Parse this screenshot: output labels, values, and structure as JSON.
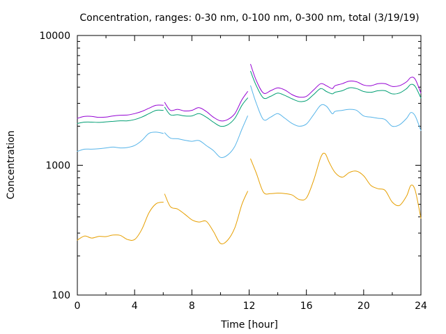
{
  "chart_data": {
    "type": "line",
    "title": "Concentration, ranges: 0-30 nm, 0-100 nm, 0-300 nm, total (3/19/19)",
    "xlabel": "Time [hour]",
    "ylabel": "Concentration",
    "xlim": [
      0,
      24
    ],
    "ylim": [
      100,
      10000
    ],
    "yscale": "log",
    "xticks": [
      "0",
      "4",
      "8",
      "12",
      "16",
      "20",
      "24"
    ],
    "yticks": [
      "100",
      "1000",
      "10000"
    ],
    "grid": false,
    "legend": "none",
    "series": [
      {
        "color": "#e69f00",
        "segments": [
          [
            [
              0,
              265
            ],
            [
              0.5,
              285
            ],
            [
              1,
              275
            ],
            [
              1.5,
              283
            ],
            [
              2,
              282
            ],
            [
              2.5,
              290
            ],
            [
              3,
              288
            ],
            [
              3.5,
              268
            ],
            [
              4,
              268
            ],
            [
              4.5,
              320
            ],
            [
              5,
              430
            ],
            [
              5.5,
              505
            ],
            [
              6,
              520
            ]
          ],
          [
            [
              6.1,
              600
            ],
            [
              6.5,
              480
            ],
            [
              7,
              460
            ],
            [
              7.5,
              420
            ],
            [
              8,
              380
            ],
            [
              8.5,
              365
            ],
            [
              9,
              370
            ],
            [
              9.5,
              310
            ],
            [
              10,
              250
            ],
            [
              10.5,
              265
            ],
            [
              11,
              330
            ],
            [
              11.5,
              500
            ],
            [
              11.9,
              630
            ]
          ],
          [
            [
              12.1,
              1120
            ],
            [
              12.5,
              870
            ],
            [
              13,
              620
            ],
            [
              13.5,
              605
            ],
            [
              14,
              610
            ],
            [
              14.5,
              605
            ],
            [
              15,
              590
            ],
            [
              15.5,
              545
            ],
            [
              16,
              560
            ],
            [
              16.5,
              760
            ],
            [
              17,
              1150
            ],
            [
              17.3,
              1230
            ],
            [
              17.6,
              1050
            ],
            [
              18,
              880
            ],
            [
              18.5,
              810
            ],
            [
              19,
              880
            ],
            [
              19.5,
              900
            ],
            [
              20,
              830
            ],
            [
              20.5,
              700
            ],
            [
              21,
              660
            ],
            [
              21.5,
              640
            ],
            [
              22,
              520
            ],
            [
              22.5,
              490
            ],
            [
              23,
              580
            ],
            [
              23.3,
              700
            ],
            [
              23.6,
              640
            ],
            [
              24,
              390
            ]
          ]
        ]
      },
      {
        "color": "#56b4e9",
        "segments": [
          [
            [
              0,
              1280
            ],
            [
              0.5,
              1330
            ],
            [
              1,
              1330
            ],
            [
              1.5,
              1340
            ],
            [
              2,
              1360
            ],
            [
              2.5,
              1380
            ],
            [
              3,
              1360
            ],
            [
              3.5,
              1370
            ],
            [
              4,
              1420
            ],
            [
              4.5,
              1550
            ],
            [
              5,
              1760
            ],
            [
              5.5,
              1800
            ],
            [
              6,
              1760
            ]
          ],
          [
            [
              6.1,
              1780
            ],
            [
              6.5,
              1620
            ],
            [
              7,
              1600
            ],
            [
              7.5,
              1560
            ],
            [
              8,
              1530
            ],
            [
              8.5,
              1550
            ],
            [
              9,
              1420
            ],
            [
              9.5,
              1300
            ],
            [
              10,
              1150
            ],
            [
              10.5,
              1200
            ],
            [
              11,
              1400
            ],
            [
              11.5,
              1900
            ],
            [
              11.9,
              2400
            ]
          ],
          [
            [
              12.1,
              4100
            ],
            [
              12.5,
              3000
            ],
            [
              13,
              2250
            ],
            [
              13.5,
              2350
            ],
            [
              14,
              2500
            ],
            [
              14.5,
              2300
            ],
            [
              15,
              2100
            ],
            [
              15.5,
              2000
            ],
            [
              16,
              2080
            ],
            [
              16.5,
              2450
            ],
            [
              17,
              2900
            ],
            [
              17.4,
              2850
            ],
            [
              17.8,
              2500
            ],
            [
              18,
              2600
            ],
            [
              18.5,
              2650
            ],
            [
              19,
              2700
            ],
            [
              19.5,
              2650
            ],
            [
              20,
              2400
            ],
            [
              20.5,
              2350
            ],
            [
              21,
              2300
            ],
            [
              21.5,
              2250
            ],
            [
              22,
              2000
            ],
            [
              22.5,
              2050
            ],
            [
              23,
              2300
            ],
            [
              23.3,
              2550
            ],
            [
              23.6,
              2400
            ],
            [
              24,
              1850
            ]
          ]
        ]
      },
      {
        "color": "#009e73",
        "segments": [
          [
            [
              0,
              2100
            ],
            [
              0.5,
              2150
            ],
            [
              1,
              2150
            ],
            [
              1.5,
              2140
            ],
            [
              2,
              2160
            ],
            [
              2.5,
              2180
            ],
            [
              3,
              2200
            ],
            [
              3.5,
              2200
            ],
            [
              4,
              2250
            ],
            [
              4.5,
              2350
            ],
            [
              5,
              2500
            ],
            [
              5.5,
              2650
            ],
            [
              6,
              2650
            ]
          ],
          [
            [
              6.1,
              2800
            ],
            [
              6.5,
              2450
            ],
            [
              7,
              2450
            ],
            [
              7.5,
              2400
            ],
            [
              8,
              2400
            ],
            [
              8.5,
              2500
            ],
            [
              9,
              2350
            ],
            [
              9.5,
              2150
            ],
            [
              10,
              2000
            ],
            [
              10.5,
              2050
            ],
            [
              11,
              2300
            ],
            [
              11.5,
              2900
            ],
            [
              11.9,
              3300
            ]
          ],
          [
            [
              12.1,
              5300
            ],
            [
              12.5,
              4100
            ],
            [
              13,
              3300
            ],
            [
              13.5,
              3400
            ],
            [
              14,
              3600
            ],
            [
              14.5,
              3450
            ],
            [
              15,
              3250
            ],
            [
              15.5,
              3100
            ],
            [
              16,
              3150
            ],
            [
              16.5,
              3500
            ],
            [
              17,
              3900
            ],
            [
              17.4,
              3700
            ],
            [
              17.8,
              3550
            ],
            [
              18,
              3650
            ],
            [
              18.5,
              3750
            ],
            [
              19,
              3950
            ],
            [
              19.5,
              3900
            ],
            [
              20,
              3700
            ],
            [
              20.5,
              3650
            ],
            [
              21,
              3750
            ],
            [
              21.5,
              3750
            ],
            [
              22,
              3550
            ],
            [
              22.5,
              3600
            ],
            [
              23,
              3900
            ],
            [
              23.3,
              4200
            ],
            [
              23.6,
              4050
            ],
            [
              24,
              3300
            ]
          ]
        ]
      },
      {
        "color": "#9400d3",
        "segments": [
          [
            [
              0,
              2300
            ],
            [
              0.5,
              2380
            ],
            [
              1,
              2380
            ],
            [
              1.5,
              2340
            ],
            [
              2,
              2350
            ],
            [
              2.5,
              2400
            ],
            [
              3,
              2430
            ],
            [
              3.5,
              2440
            ],
            [
              4,
              2500
            ],
            [
              4.5,
              2600
            ],
            [
              5,
              2750
            ],
            [
              5.5,
              2900
            ],
            [
              6,
              2900
            ]
          ],
          [
            [
              6.1,
              3050
            ],
            [
              6.5,
              2650
            ],
            [
              7,
              2700
            ],
            [
              7.5,
              2620
            ],
            [
              8,
              2650
            ],
            [
              8.5,
              2780
            ],
            [
              9,
              2600
            ],
            [
              9.5,
              2350
            ],
            [
              10,
              2200
            ],
            [
              10.5,
              2250
            ],
            [
              11,
              2500
            ],
            [
              11.5,
              3200
            ],
            [
              11.9,
              3700
            ]
          ],
          [
            [
              12.1,
              6000
            ],
            [
              12.5,
              4500
            ],
            [
              13,
              3600
            ],
            [
              13.5,
              3750
            ],
            [
              14,
              3950
            ],
            [
              14.5,
              3800
            ],
            [
              15,
              3500
            ],
            [
              15.5,
              3350
            ],
            [
              16,
              3400
            ],
            [
              16.5,
              3800
            ],
            [
              17,
              4250
            ],
            [
              17.4,
              4100
            ],
            [
              17.8,
              3900
            ],
            [
              18,
              4100
            ],
            [
              18.5,
              4250
            ],
            [
              19,
              4450
            ],
            [
              19.5,
              4400
            ],
            [
              20,
              4150
            ],
            [
              20.5,
              4100
            ],
            [
              21,
              4250
            ],
            [
              21.5,
              4250
            ],
            [
              22,
              4050
            ],
            [
              22.5,
              4100
            ],
            [
              23,
              4400
            ],
            [
              23.3,
              4750
            ],
            [
              23.6,
              4600
            ],
            [
              24,
              3600
            ]
          ]
        ]
      }
    ]
  }
}
